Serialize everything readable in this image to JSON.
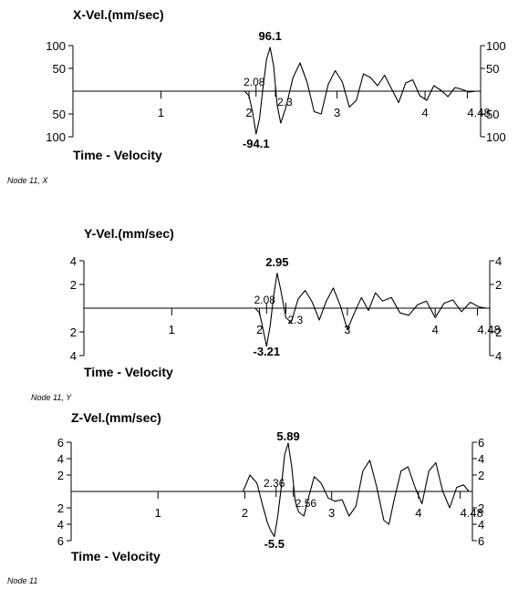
{
  "chart_data": [
    {
      "type": "line",
      "title": "X-Vel.(mm/sec)",
      "xlabel": "Time - Velocity",
      "caption": "Node 11, X",
      "xlim": [
        0,
        4.6
      ],
      "ylim": [
        -100,
        100
      ],
      "y_ticks_left": [
        "100",
        "50",
        "50",
        "100"
      ],
      "y_ticks_right": [
        "100",
        "50",
        "50",
        "100"
      ],
      "y_tick_values": [
        100,
        50,
        -50,
        -100
      ],
      "x_ticks": [
        "1",
        "2",
        "3",
        "4",
        "4.48"
      ],
      "x_tick_values": [
        1,
        2,
        3,
        4,
        4.48
      ],
      "time_markers": [
        {
          "value": 2.08,
          "label": "2.08"
        },
        {
          "value": 2.3,
          "label": "2.3"
        }
      ],
      "peak_max": {
        "x": 2.24,
        "value": 96.1,
        "label": "96.1"
      },
      "peak_min": {
        "x": 2.08,
        "value": -94.1,
        "label": "-94.1"
      },
      "series": [
        {
          "x": [
            0,
            1.95,
            2.0,
            2.04,
            2.08,
            2.12,
            2.16,
            2.2,
            2.24,
            2.28,
            2.32,
            2.36,
            2.42,
            2.5,
            2.58,
            2.66,
            2.74,
            2.82,
            2.9,
            2.98,
            3.06,
            3.14,
            3.22,
            3.3,
            3.38,
            3.46,
            3.54,
            3.62,
            3.7,
            3.78,
            3.86,
            3.94,
            4.02,
            4.1,
            4.18,
            4.26,
            4.34,
            4.42,
            4.5,
            4.58
          ],
          "values": [
            0,
            0,
            -10,
            -45,
            -94.1,
            -60,
            10,
            70,
            96.1,
            55,
            -30,
            -70,
            -35,
            30,
            62,
            20,
            -45,
            -50,
            15,
            45,
            20,
            -35,
            -20,
            38,
            30,
            12,
            35,
            5,
            -25,
            18,
            25,
            -10,
            -20,
            12,
            2,
            -12,
            8,
            4,
            -2,
            0
          ]
        }
      ]
    },
    {
      "type": "line",
      "title": "Y-Vel.(mm/sec)",
      "xlabel": "Time - Velocity",
      "caption": "Node 11, Y",
      "xlim": [
        0,
        4.6
      ],
      "ylim": [
        -4,
        4
      ],
      "y_ticks_left": [
        "4",
        "2",
        "2",
        "4"
      ],
      "y_ticks_right": [
        "4",
        "2",
        "2",
        "4"
      ],
      "y_tick_values": [
        4,
        2,
        -2,
        -4
      ],
      "x_ticks": [
        "1",
        "2",
        "3",
        "4",
        "4.48"
      ],
      "x_tick_values": [
        1,
        2,
        3,
        4,
        4.48
      ],
      "time_markers": [
        {
          "value": 2.08,
          "label": "2.08"
        },
        {
          "value": 2.3,
          "label": "2.3"
        }
      ],
      "peak_max": {
        "x": 2.2,
        "value": 2.95,
        "label": "2.95"
      },
      "peak_min": {
        "x": 2.08,
        "value": -3.21,
        "label": "-3.21"
      },
      "series": [
        {
          "x": [
            0,
            1.95,
            2.0,
            2.04,
            2.08,
            2.12,
            2.16,
            2.2,
            2.24,
            2.3,
            2.36,
            2.44,
            2.52,
            2.6,
            2.68,
            2.76,
            2.84,
            2.92,
            3.0,
            3.08,
            3.16,
            3.24,
            3.32,
            3.4,
            3.5,
            3.6,
            3.7,
            3.8,
            3.9,
            4.0,
            4.1,
            4.2,
            4.3,
            4.4,
            4.5,
            4.58
          ],
          "values": [
            0,
            0,
            -0.4,
            -1.8,
            -3.21,
            -1.5,
            1.0,
            2.95,
            1.6,
            -0.8,
            -1.2,
            0.8,
            1.5,
            0.5,
            -1.0,
            0.6,
            1.7,
            0.2,
            -1.8,
            -0.4,
            0.9,
            -0.2,
            1.3,
            0.6,
            0.9,
            -0.4,
            -0.6,
            0.3,
            0.6,
            -0.8,
            0.4,
            0.7,
            -0.3,
            0.5,
            0.1,
            0
          ]
        }
      ]
    },
    {
      "type": "line",
      "title": "Z-Vel.(mm/sec)",
      "xlabel": "Time - Velocity",
      "caption": "Node 11",
      "xlim": [
        0,
        4.6
      ],
      "ylim": [
        -6,
        6
      ],
      "y_ticks_left": [
        "6",
        "4",
        "2",
        "2",
        "4",
        "6"
      ],
      "y_ticks_right": [
        "6",
        "4",
        "2",
        "2",
        "4",
        "6"
      ],
      "y_tick_values": [
        6,
        4,
        2,
        -2,
        -4,
        -6
      ],
      "x_ticks": [
        "1",
        "2",
        "3",
        "4",
        "4.48"
      ],
      "x_tick_values": [
        1,
        2,
        3,
        4,
        4.48
      ],
      "time_markers": [
        {
          "value": 2.36,
          "label": "2.36"
        },
        {
          "value": 2.56,
          "label": "2.56"
        }
      ],
      "peak_max": {
        "x": 2.5,
        "value": 5.89,
        "label": "5.89"
      },
      "peak_min": {
        "x": 2.34,
        "value": -5.5,
        "label": "-5.5"
      },
      "series": [
        {
          "x": [
            0,
            1.98,
            2.06,
            2.14,
            2.2,
            2.26,
            2.3,
            2.34,
            2.38,
            2.42,
            2.46,
            2.5,
            2.54,
            2.58,
            2.62,
            2.68,
            2.74,
            2.8,
            2.88,
            2.96,
            3.04,
            3.12,
            3.2,
            3.28,
            3.36,
            3.44,
            3.52,
            3.6,
            3.66,
            3.72,
            3.8,
            3.88,
            3.96,
            4.04,
            4.12,
            4.2,
            4.28,
            4.36,
            4.44,
            4.52,
            4.58
          ],
          "values": [
            0,
            0,
            2.0,
            1.0,
            -1.5,
            -3.8,
            -4.8,
            -5.5,
            -3.0,
            0.5,
            4.5,
            5.89,
            3.0,
            -1.2,
            -2.5,
            -3.0,
            -0.5,
            1.8,
            1.0,
            -0.8,
            -1.2,
            -1.0,
            -3.0,
            -1.8,
            2.5,
            3.8,
            0.5,
            -3.5,
            -4.0,
            -1.0,
            2.5,
            3.0,
            0.5,
            -1.5,
            2.5,
            3.5,
            0,
            -2.0,
            0.5,
            0.8,
            0
          ]
        }
      ]
    }
  ]
}
